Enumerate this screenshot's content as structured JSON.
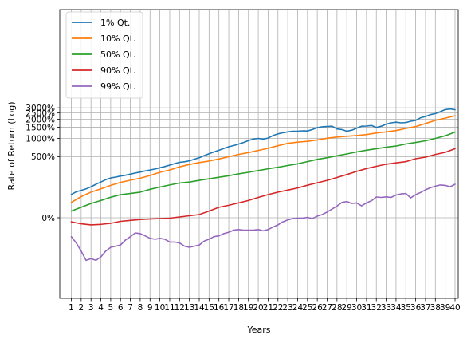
{
  "chart_data": {
    "type": "line",
    "title": "",
    "xlabel": "Years",
    "ylabel": "Rate of Return (Log)",
    "xlim": [
      0.65,
      40.1
    ],
    "grid": true,
    "legend_position": "top-left",
    "x_ticks": [
      "1",
      "2",
      "3",
      "4",
      "5",
      "6",
      "7",
      "8",
      "9",
      "10",
      "11",
      "12",
      "13",
      "14",
      "15",
      "16",
      "17",
      "18",
      "19",
      "20",
      "21",
      "22",
      "23",
      "24",
      "25",
      "26",
      "27",
      "28",
      "29",
      "30",
      "31",
      "32",
      "33",
      "34",
      "35",
      "36",
      "37",
      "38",
      "39",
      "40"
    ],
    "y_ticks": [
      {
        "label": "0%",
        "value": 0
      },
      {
        "label": "500%",
        "value": 500
      },
      {
        "label": "1000%",
        "value": 1000
      },
      {
        "label": "1500%",
        "value": 1500
      },
      {
        "label": "2000%",
        "value": 2000
      },
      {
        "label": "2500%",
        "value": 2500
      },
      {
        "label": "3000%",
        "value": 3000
      }
    ],
    "series": [
      {
        "name": "1% Qt.",
        "color": "#1f77b4",
        "x": [
          1,
          1.5,
          2,
          2.5,
          3,
          3.5,
          4,
          4.5,
          5,
          5.5,
          6,
          6.5,
          7,
          7.5,
          8,
          8.5,
          9,
          9.5,
          10,
          10.5,
          11,
          11.5,
          12,
          12.5,
          13,
          13.5,
          14,
          14.5,
          15,
          15.5,
          16,
          16.5,
          17,
          17.5,
          18,
          18.5,
          19,
          19.5,
          20,
          20.5,
          21,
          21.5,
          22,
          22.5,
          23,
          23.5,
          24,
          24.5,
          25,
          25.5,
          26,
          26.5,
          27,
          27.5,
          28,
          28.5,
          29,
          29.5,
          30,
          30.5,
          31,
          31.5,
          32,
          32.5,
          33,
          33.5,
          34,
          34.5,
          35,
          35.5,
          36,
          36.5,
          37,
          37.5,
          38,
          38.5,
          39,
          39.5,
          40
        ],
        "values": [
          85,
          100,
          108,
          118,
          132,
          150,
          168,
          188,
          203,
          212,
          222,
          230,
          242,
          254,
          265,
          278,
          290,
          302,
          318,
          335,
          355,
          378,
          398,
          408,
          423,
          452,
          480,
          520,
          560,
          600,
          640,
          685,
          730,
          765,
          810,
          860,
          920,
          975,
          1000,
          975,
          1010,
          1110,
          1180,
          1230,
          1270,
          1300,
          1300,
          1320,
          1310,
          1380,
          1480,
          1530,
          1540,
          1560,
          1410,
          1380,
          1300,
          1350,
          1450,
          1560,
          1570,
          1600,
          1490,
          1560,
          1680,
          1760,
          1800,
          1760,
          1780,
          1860,
          1920,
          2110,
          2210,
          2360,
          2450,
          2620,
          2820,
          2880,
          2800
        ]
      },
      {
        "name": "10% Qt.",
        "color": "#ff7f0e",
        "x": [
          1,
          2,
          3,
          4,
          5,
          6,
          7,
          8,
          9,
          10,
          11,
          12,
          13,
          14,
          15,
          16,
          17,
          18,
          19,
          20,
          21,
          22,
          23,
          24,
          25,
          26,
          27,
          28,
          29,
          30,
          31,
          32,
          33,
          34,
          35,
          36,
          37,
          38,
          39,
          40
        ],
        "values": [
          48,
          74,
          98,
          118,
          142,
          165,
          183,
          201,
          228,
          262,
          290,
          330,
          365,
          395,
          420,
          455,
          497,
          545,
          585,
          635,
          690,
          760,
          832,
          868,
          895,
          945,
          1005,
          1050,
          1080,
          1110,
          1150,
          1220,
          1270,
          1330,
          1440,
          1540,
          1720,
          1920,
          2080,
          2270
        ]
      },
      {
        "name": "50% Qt.",
        "color": "#2ca02c",
        "x": [
          1,
          2,
          3,
          4,
          5,
          6,
          7,
          8,
          9,
          10,
          11,
          12,
          13,
          14,
          15,
          16,
          17,
          18,
          19,
          20,
          21,
          22,
          23,
          24,
          25,
          26,
          27,
          28,
          29,
          30,
          31,
          32,
          33,
          34,
          35,
          36,
          37,
          38,
          39,
          40
        ],
        "values": [
          18,
          30,
          44,
          56,
          71,
          84,
          90,
          98,
          115,
          130,
          145,
          160,
          168,
          182,
          195,
          210,
          225,
          245,
          262,
          283,
          305,
          325,
          350,
          375,
          410,
          448,
          480,
          517,
          555,
          600,
          642,
          680,
          718,
          750,
          812,
          860,
          915,
          1000,
          1100,
          1260
        ]
      },
      {
        "name": "90% Qt.",
        "color": "#d62728",
        "x": [
          1,
          2,
          3,
          4,
          5,
          6,
          7,
          8,
          9,
          10,
          11,
          12,
          13,
          14,
          15,
          16,
          17,
          18,
          19,
          20,
          21,
          22,
          23,
          24,
          25,
          26,
          27,
          28,
          29,
          30,
          31,
          32,
          33,
          34,
          35,
          36,
          37,
          38,
          39,
          40
        ],
        "values": [
          -9,
          -13,
          -15,
          -14,
          -12,
          -8,
          -6,
          -4,
          -3,
          -2,
          -1,
          2,
          5,
          8,
          18,
          30,
          37,
          46,
          56,
          70,
          84,
          98,
          110,
          124,
          143,
          162,
          182,
          208,
          238,
          272,
          308,
          338,
          368,
          390,
          410,
          460,
          490,
          545,
          590,
          680
        ]
      },
      {
        "name": "99% Qt.",
        "color": "#9467bd",
        "x": [
          1,
          1.5,
          2,
          2.5,
          3,
          3.5,
          4,
          4.5,
          5,
          5.5,
          6,
          6.5,
          7,
          7.5,
          8,
          8.5,
          9,
          9.5,
          10,
          10.5,
          11,
          11.5,
          12,
          12.5,
          13,
          13.5,
          14,
          14.5,
          15,
          15.5,
          16,
          16.5,
          17,
          17.5,
          18,
          18.5,
          19,
          19.5,
          20,
          20.5,
          21,
          21.5,
          22,
          22.5,
          23,
          23.5,
          24,
          24.5,
          25,
          25.5,
          26,
          26.5,
          27,
          27.5,
          28,
          28.5,
          29,
          29.5,
          30,
          30.5,
          31,
          31.5,
          32,
          32.5,
          33,
          33.5,
          34,
          34.5,
          35,
          35.5,
          36,
          36.5,
          37,
          37.5,
          38,
          38.5,
          39,
          39.5,
          40
        ],
        "values": [
          -33,
          -40,
          -47,
          -53,
          -52,
          -53,
          -51,
          -47,
          -44,
          -43,
          -42,
          -37,
          -33,
          -28,
          -29,
          -32,
          -35,
          -36,
          -35,
          -36,
          -39,
          -39,
          -40,
          -43,
          -44,
          -43,
          -42,
          -38,
          -36,
          -33,
          -32,
          -29,
          -27,
          -24,
          -23,
          -24,
          -24,
          -24,
          -23,
          -25,
          -23,
          -19,
          -15,
          -9,
          -5,
          -2,
          -1,
          -1,
          1,
          -2,
          4,
          8,
          15,
          24,
          34,
          48,
          52,
          44,
          46,
          35,
          46,
          55,
          72,
          70,
          73,
          70,
          82,
          88,
          90,
          68,
          84,
          96,
          112,
          125,
          136,
          145,
          142,
          132,
          150
        ]
      }
    ]
  }
}
